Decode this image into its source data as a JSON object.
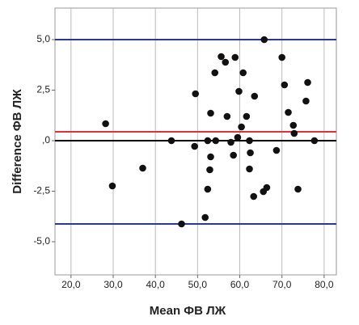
{
  "chart_data": {
    "type": "scatter",
    "x_label": "Mean ФВ ЛЖ",
    "y_label": "Difference ФВ ЛЖ",
    "xlim": [
      16.2,
      82.9
    ],
    "ylim": [
      -6.64,
      6.56
    ],
    "xticks": [
      {
        "value": 20,
        "label": "20,0"
      },
      {
        "value": 30,
        "label": "30,0"
      },
      {
        "value": 40,
        "label": "40,0"
      },
      {
        "value": 50,
        "label": "50,0"
      },
      {
        "value": 60,
        "label": "60,0"
      },
      {
        "value": 70,
        "label": "70,0"
      },
      {
        "value": 80,
        "label": "80,0"
      }
    ],
    "yticks": [
      {
        "value": -5,
        "label": "-5,0"
      },
      {
        "value": -2.5,
        "label": "-2,5"
      },
      {
        "value": 0,
        "label": ",0"
      },
      {
        "value": 2.5,
        "label": "2,5"
      },
      {
        "value": 5,
        "label": "5,0"
      }
    ],
    "grid": true,
    "reference_lines": [
      {
        "value": 5.0,
        "color": "#2b3990"
      },
      {
        "value": -4.12,
        "color": "#2b3990"
      },
      {
        "value": 0.44,
        "color": "#e0303a"
      },
      {
        "value": 0,
        "color": "#000000"
      }
    ],
    "color": "#111111",
    "x": [
      28.2,
      29.8,
      37.0,
      43.8,
      49.5,
      49.3,
      46.2,
      51.8,
      52.4,
      52.4,
      53.1,
      53.1,
      52.9,
      54.3,
      54.1,
      55.6,
      56.6,
      57.0,
      57.9,
      58.9,
      58.5,
      59.5,
      59.8,
      60.4,
      60.8,
      61.6,
      62.3,
      62.5,
      62.3,
      63.3,
      63.5,
      65.6,
      66.4,
      65.8,
      68.7,
      70.0,
      70.6,
      71.5,
      72.7,
      72.9,
      73.8,
      75.7,
      76.1,
      77.7
    ],
    "values": [
      0.84,
      -2.24,
      -1.36,
      0,
      2.32,
      -0.28,
      -4.12,
      -3.8,
      0,
      -2.4,
      1.36,
      -0.8,
      -1.44,
      0,
      3.36,
      4.16,
      3.88,
      1.2,
      -0.08,
      4.12,
      -0.72,
      0.16,
      2.44,
      0.68,
      3.36,
      1.2,
      0,
      -0.6,
      -1.4,
      -2.76,
      2.2,
      -2.52,
      -2.32,
      5.0,
      -0.48,
      4.12,
      2.76,
      1.4,
      0.76,
      0.36,
      -2.4,
      1.96,
      2.88,
      0
    ]
  }
}
